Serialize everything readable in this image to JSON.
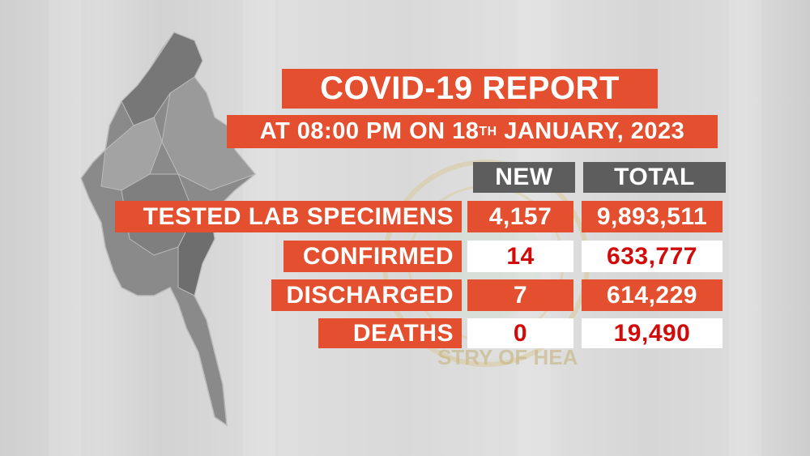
{
  "title": "COVID-19 REPORT",
  "subtitle": {
    "prefix": "AT 08:00 PM ON 18",
    "sup": "TH",
    "suffix": " JANUARY, 2023"
  },
  "columns": [
    "NEW",
    "TOTAL"
  ],
  "rows": [
    {
      "label": "TESTED LAB SPECIMENS",
      "new": "4,157",
      "total": "9,893,511"
    },
    {
      "label": "CONFIRMED",
      "new": "14",
      "total": "633,777"
    },
    {
      "label": "DISCHARGED",
      "new": "7",
      "total": "614,229"
    },
    {
      "label": "DEATHS",
      "new": "0",
      "total": "19,490"
    }
  ],
  "watermark_text": "MINISTRY OF HEALTH",
  "colors": {
    "accent": "#e4502f",
    "header": "#5d5d5d",
    "highlight_text": "#d10a0a"
  }
}
